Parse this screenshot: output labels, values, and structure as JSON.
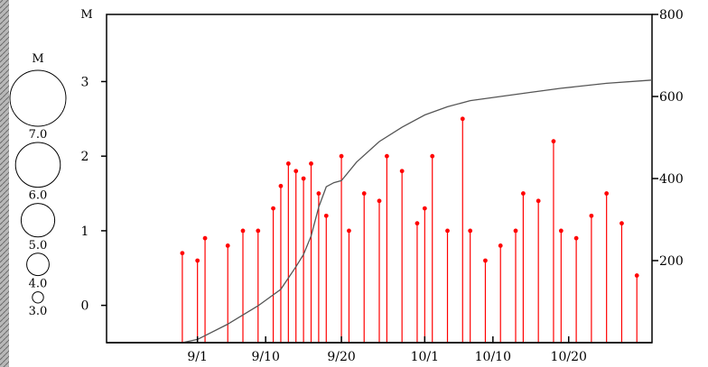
{
  "header": {
    "title_fragment": ""
  },
  "legend": {
    "heading": "M",
    "items": [
      {
        "label": "7.0",
        "mag": 7
      },
      {
        "label": "6.0",
        "mag": 6
      },
      {
        "label": "5.0",
        "mag": 5
      },
      {
        "label": "4.0",
        "mag": 4
      },
      {
        "label": "3.0",
        "mag": 3
      }
    ]
  },
  "colors": {
    "event": "#ff0000",
    "cumulative": "#555555",
    "axis": "#000000",
    "terrain": "#777777"
  },
  "chart_data": {
    "type": "line",
    "title": "",
    "xlabel": "",
    "ylabel_left": "M",
    "ylabel_right": "",
    "x_start": "08/20",
    "x_end": "10/31",
    "xticks": [
      {
        "date": "09/01",
        "label": "9/1"
      },
      {
        "date": "09/10",
        "label": "9/10"
      },
      {
        "date": "09/20",
        "label": "9/20"
      },
      {
        "date": "10/01",
        "label": "10/1"
      },
      {
        "date": "10/10",
        "label": "10/10"
      },
      {
        "date": "10/20",
        "label": "10/20"
      }
    ],
    "ylim_left": [
      -0.5,
      3.9
    ],
    "yticks_left": [
      0,
      1,
      2,
      3
    ],
    "ylim_right": [
      0,
      800
    ],
    "yticks_right": [
      200,
      400,
      600,
      800
    ],
    "grid": false,
    "series": [
      {
        "kind": "stem",
        "points": [
          [
            "08/30",
            0.7
          ],
          [
            "09/01",
            0.6
          ],
          [
            "09/02",
            0.9
          ],
          [
            "09/05",
            0.8
          ],
          [
            "09/07",
            1.0
          ],
          [
            "09/09",
            1.0
          ],
          [
            "09/11",
            1.3
          ],
          [
            "09/12",
            1.6
          ],
          [
            "09/13",
            1.9
          ],
          [
            "09/14",
            1.8
          ],
          [
            "09/15",
            1.7
          ],
          [
            "09/16",
            1.9
          ],
          [
            "09/17",
            1.5
          ],
          [
            "09/18",
            1.2
          ],
          [
            "09/20",
            2.0
          ],
          [
            "09/21",
            1.0
          ],
          [
            "09/23",
            1.5
          ],
          [
            "09/25",
            1.4
          ],
          [
            "09/26",
            2.0
          ],
          [
            "09/28",
            1.8
          ],
          [
            "09/30",
            1.1
          ],
          [
            "10/01",
            1.3
          ],
          [
            "10/02",
            2.0
          ],
          [
            "10/04",
            1.0
          ],
          [
            "10/06",
            2.5
          ],
          [
            "10/07",
            1.0
          ],
          [
            "10/09",
            0.6
          ],
          [
            "10/11",
            0.8
          ],
          [
            "10/13",
            1.0
          ],
          [
            "10/14",
            1.5
          ],
          [
            "10/16",
            1.4
          ],
          [
            "10/18",
            2.2
          ],
          [
            "10/19",
            1.0
          ],
          [
            "10/21",
            0.9
          ],
          [
            "10/23",
            1.2
          ],
          [
            "10/25",
            1.5
          ],
          [
            "10/27",
            1.1
          ],
          [
            "10/29",
            0.4
          ]
        ]
      },
      {
        "kind": "cumulative",
        "points": [
          [
            "08/30",
            0
          ],
          [
            "09/01",
            8
          ],
          [
            "09/05",
            45
          ],
          [
            "09/09",
            90
          ],
          [
            "09/12",
            130
          ],
          [
            "09/14",
            185
          ],
          [
            "09/15",
            215
          ],
          [
            "09/16",
            260
          ],
          [
            "09/17",
            330
          ],
          [
            "09/18",
            380
          ],
          [
            "09/19",
            390
          ],
          [
            "09/20",
            395
          ],
          [
            "09/22",
            440
          ],
          [
            "09/25",
            490
          ],
          [
            "09/28",
            525
          ],
          [
            "10/01",
            555
          ],
          [
            "10/04",
            575
          ],
          [
            "10/07",
            590
          ],
          [
            "10/11",
            600
          ],
          [
            "10/15",
            610
          ],
          [
            "10/19",
            620
          ],
          [
            "10/25",
            632
          ],
          [
            "10/31",
            640
          ]
        ]
      }
    ]
  }
}
